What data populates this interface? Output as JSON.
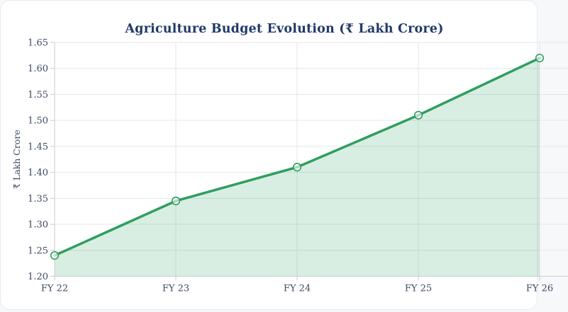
{
  "chart_data": {
    "type": "area",
    "title": "Agriculture Budget Evolution (₹ Lakh Crore)",
    "categories": [
      "FY 22",
      "FY 23",
      "FY 24",
      "FY 25",
      "FY 26"
    ],
    "values": [
      1.24,
      1.345,
      1.41,
      1.51,
      1.62
    ],
    "xlabel": "",
    "ylabel": "₹ Lakh Crore",
    "ylim": [
      1.2,
      1.65
    ],
    "ytick_step": 0.05,
    "ytick_decimals": 2,
    "grid": true,
    "legend_position": "none",
    "markers": true,
    "colors": {
      "line": "#2f9e5f",
      "area_fill": "rgba(47,158,95,0.18)",
      "marker_fill": "rgba(255,255,255,0.6)",
      "marker_stroke": "#2f9e5f",
      "gridline": "#e4e6ea",
      "axis": "#c8ccd3",
      "tick_label": "#3c4963",
      "title": "#1f3a68"
    }
  }
}
